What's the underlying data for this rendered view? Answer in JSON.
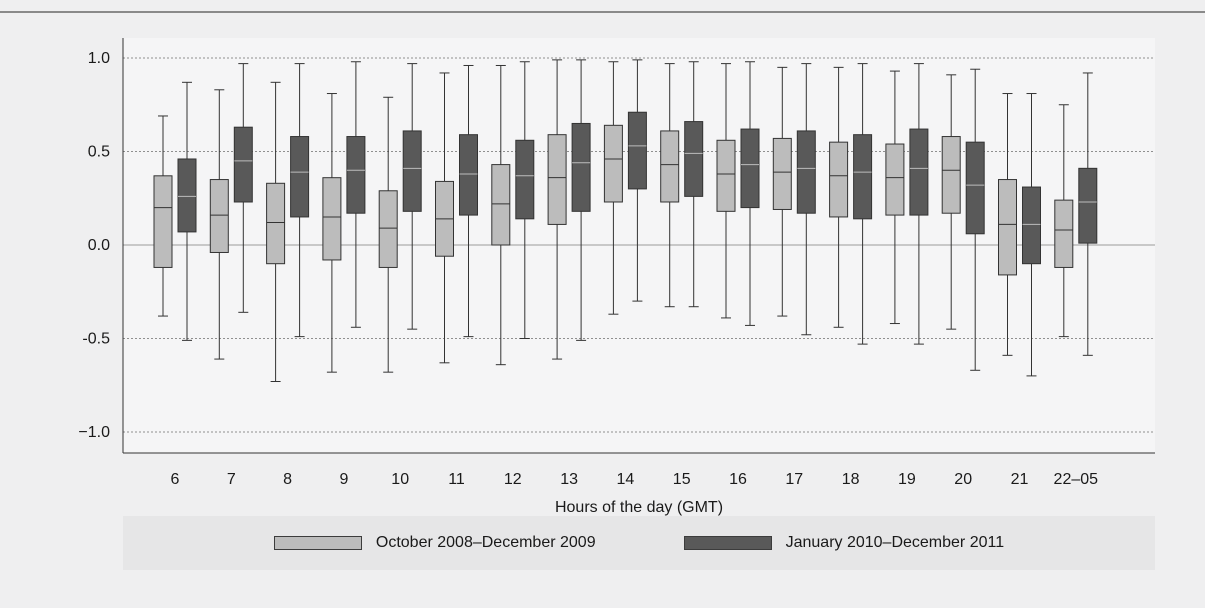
{
  "chart_data": {
    "type": "box",
    "title": "",
    "xlabel": "Hours of the day (GMT)",
    "ylabel": "",
    "ylim": [
      -1.1,
      1.1
    ],
    "yticks": [
      -1.0,
      -0.5,
      0.0,
      0.5,
      1.0
    ],
    "ytick_labels": [
      "−1.0",
      "-0.5",
      "0.0",
      "0.5",
      "1.0"
    ],
    "grid": "horizontal dotted",
    "legend_position": "bottom",
    "categories": [
      "6",
      "7",
      "8",
      "9",
      "10",
      "11",
      "12",
      "13",
      "14",
      "15",
      "16",
      "17",
      "18",
      "19",
      "20",
      "21",
      "22–05"
    ],
    "series": [
      {
        "name": "October 2008–December 2009",
        "color": "#bcbcbc",
        "boxes": [
          {
            "min": -0.38,
            "q1": -0.12,
            "median": 0.2,
            "q3": 0.37,
            "max": 0.69
          },
          {
            "min": -0.61,
            "q1": -0.04,
            "median": 0.16,
            "q3": 0.35,
            "max": 0.83
          },
          {
            "min": -0.73,
            "q1": -0.1,
            "median": 0.12,
            "q3": 0.33,
            "max": 0.87
          },
          {
            "min": -0.68,
            "q1": -0.08,
            "median": 0.15,
            "q3": 0.36,
            "max": 0.81
          },
          {
            "min": -0.68,
            "q1": -0.12,
            "median": 0.09,
            "q3": 0.29,
            "max": 0.79
          },
          {
            "min": -0.63,
            "q1": -0.06,
            "median": 0.14,
            "q3": 0.34,
            "max": 0.92
          },
          {
            "min": -0.64,
            "q1": 0.0,
            "median": 0.22,
            "q3": 0.43,
            "max": 0.96
          },
          {
            "min": -0.61,
            "q1": 0.11,
            "median": 0.36,
            "q3": 0.59,
            "max": 0.99
          },
          {
            "min": -0.37,
            "q1": 0.23,
            "median": 0.46,
            "q3": 0.64,
            "max": 0.98
          },
          {
            "min": -0.33,
            "q1": 0.23,
            "median": 0.43,
            "q3": 0.61,
            "max": 0.97
          },
          {
            "min": -0.39,
            "q1": 0.18,
            "median": 0.38,
            "q3": 0.56,
            "max": 0.97
          },
          {
            "min": -0.38,
            "q1": 0.19,
            "median": 0.39,
            "q3": 0.57,
            "max": 0.95
          },
          {
            "min": -0.44,
            "q1": 0.15,
            "median": 0.37,
            "q3": 0.55,
            "max": 0.95
          },
          {
            "min": -0.42,
            "q1": 0.16,
            "median": 0.36,
            "q3": 0.54,
            "max": 0.93
          },
          {
            "min": -0.45,
            "q1": 0.17,
            "median": 0.4,
            "q3": 0.58,
            "max": 0.91
          },
          {
            "min": -0.59,
            "q1": -0.16,
            "median": 0.11,
            "q3": 0.35,
            "max": 0.81
          },
          {
            "min": -0.49,
            "q1": -0.12,
            "median": 0.08,
            "q3": 0.24,
            "max": 0.75
          }
        ]
      },
      {
        "name": "January 2010–December 2011",
        "color": "#595959",
        "boxes": [
          {
            "min": -0.51,
            "q1": 0.07,
            "median": 0.26,
            "q3": 0.46,
            "max": 0.87
          },
          {
            "min": -0.36,
            "q1": 0.23,
            "median": 0.45,
            "q3": 0.63,
            "max": 0.97
          },
          {
            "min": -0.49,
            "q1": 0.15,
            "median": 0.39,
            "q3": 0.58,
            "max": 0.97
          },
          {
            "min": -0.44,
            "q1": 0.17,
            "median": 0.4,
            "q3": 0.58,
            "max": 0.98
          },
          {
            "min": -0.45,
            "q1": 0.18,
            "median": 0.41,
            "q3": 0.61,
            "max": 0.97
          },
          {
            "min": -0.49,
            "q1": 0.16,
            "median": 0.38,
            "q3": 0.59,
            "max": 0.96
          },
          {
            "min": -0.5,
            "q1": 0.14,
            "median": 0.37,
            "q3": 0.56,
            "max": 0.98
          },
          {
            "min": -0.51,
            "q1": 0.18,
            "median": 0.44,
            "q3": 0.65,
            "max": 0.99
          },
          {
            "min": -0.3,
            "q1": 0.3,
            "median": 0.53,
            "q3": 0.71,
            "max": 0.99
          },
          {
            "min": -0.33,
            "q1": 0.26,
            "median": 0.49,
            "q3": 0.66,
            "max": 0.98
          },
          {
            "min": -0.43,
            "q1": 0.2,
            "median": 0.43,
            "q3": 0.62,
            "max": 0.98
          },
          {
            "min": -0.48,
            "q1": 0.17,
            "median": 0.41,
            "q3": 0.61,
            "max": 0.97
          },
          {
            "min": -0.53,
            "q1": 0.14,
            "median": 0.39,
            "q3": 0.59,
            "max": 0.97
          },
          {
            "min": -0.53,
            "q1": 0.16,
            "median": 0.41,
            "q3": 0.62,
            "max": 0.97
          },
          {
            "min": -0.67,
            "q1": 0.06,
            "median": 0.32,
            "q3": 0.55,
            "max": 0.94
          },
          {
            "min": -0.7,
            "q1": -0.1,
            "median": 0.11,
            "q3": 0.31,
            "max": 0.81
          },
          {
            "min": -0.59,
            "q1": 0.01,
            "median": 0.23,
            "q3": 0.41,
            "max": 0.92
          }
        ]
      }
    ]
  }
}
